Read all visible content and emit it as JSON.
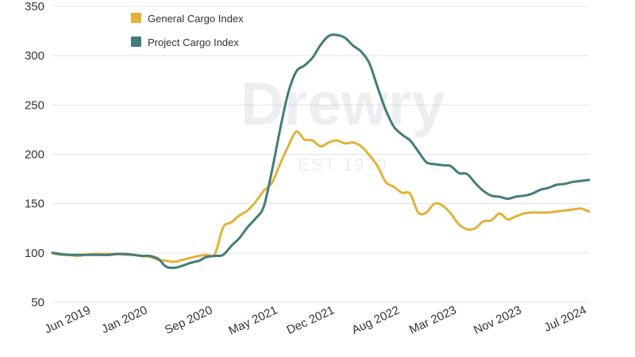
{
  "chart_data": {
    "type": "line",
    "watermark": {
      "brand": "Drewry",
      "tagline": "EST 1970"
    },
    "ylim": [
      50,
      350
    ],
    "yticks": [
      "50",
      "100",
      "150",
      "200",
      "250",
      "300",
      "350"
    ],
    "xticks": [
      {
        "label": "Jun 2019",
        "x": "2019-06"
      },
      {
        "label": "Jan 2020",
        "x": "2020-01"
      },
      {
        "label": "Sep 2020",
        "x": "2020-09"
      },
      {
        "label": "May 2021",
        "x": "2021-05"
      },
      {
        "label": "Dec 2021",
        "x": "2021-12"
      },
      {
        "label": "Aug 2022",
        "x": "2022-08"
      },
      {
        "label": "Mar 2023",
        "x": "2023-03"
      },
      {
        "label": "Nov 2023",
        "x": "2023-11"
      },
      {
        "label": "Jul 2024",
        "x": "2024-07"
      }
    ],
    "grid": true,
    "legend_position": "top-left",
    "x": [
      "2019-01",
      "2019-02",
      "2019-03",
      "2019-04",
      "2019-05",
      "2019-06",
      "2019-07",
      "2019-08",
      "2019-09",
      "2019-10",
      "2019-11",
      "2019-12",
      "2020-01",
      "2020-02",
      "2020-03",
      "2020-04",
      "2020-05",
      "2020-06",
      "2020-07",
      "2020-08",
      "2020-09",
      "2020-10",
      "2020-11",
      "2020-12",
      "2021-01",
      "2021-02",
      "2021-03",
      "2021-04",
      "2021-05",
      "2021-06",
      "2021-07",
      "2021-08",
      "2021-09",
      "2021-10",
      "2021-11",
      "2021-12",
      "2022-01",
      "2022-02",
      "2022-03",
      "2022-04",
      "2022-05",
      "2022-06",
      "2022-07",
      "2022-08",
      "2022-09",
      "2022-10",
      "2022-11",
      "2022-12",
      "2023-01",
      "2023-02",
      "2023-03",
      "2023-04",
      "2023-05",
      "2023-06",
      "2023-07",
      "2023-08",
      "2023-09",
      "2023-10",
      "2023-11",
      "2023-12",
      "2024-01",
      "2024-02",
      "2024-03",
      "2024-04",
      "2024-05",
      "2024-06",
      "2024-07"
    ],
    "series": [
      {
        "name": "General Cargo Index",
        "color": "#e2b23a",
        "values": [
          100,
          98,
          98,
          97,
          98,
          99,
          99,
          99,
          99,
          98,
          98,
          97,
          96,
          93,
          92,
          91,
          93,
          95,
          97,
          98,
          99,
          126,
          131,
          138,
          143,
          152,
          163,
          171,
          190,
          208,
          223,
          215,
          214,
          208,
          212,
          214,
          211,
          212,
          208,
          199,
          188,
          172,
          167,
          161,
          160,
          141,
          141,
          150,
          148,
          140,
          129,
          124,
          125,
          132,
          133,
          140,
          134,
          137,
          140,
          141,
          141,
          141,
          142,
          143,
          144,
          145,
          142
        ],
        "stroke": 3
      },
      {
        "name": "Project Cargo Index",
        "color": "#437c7a",
        "values": [
          100,
          99,
          98,
          98,
          98,
          98,
          98,
          98,
          99,
          99,
          98,
          97,
          97,
          94,
          86,
          85,
          87,
          90,
          92,
          96,
          97,
          98,
          107,
          115,
          126,
          135,
          147,
          183,
          225,
          262,
          284,
          290,
          298,
          311,
          320,
          321,
          318,
          310,
          304,
          292,
          268,
          245,
          228,
          220,
          214,
          203,
          192,
          190,
          189,
          188,
          181,
          180,
          171,
          163,
          158,
          157,
          155,
          157,
          158,
          160,
          164,
          166,
          169,
          170,
          172,
          173,
          174
        ],
        "stroke": 3
      }
    ]
  }
}
